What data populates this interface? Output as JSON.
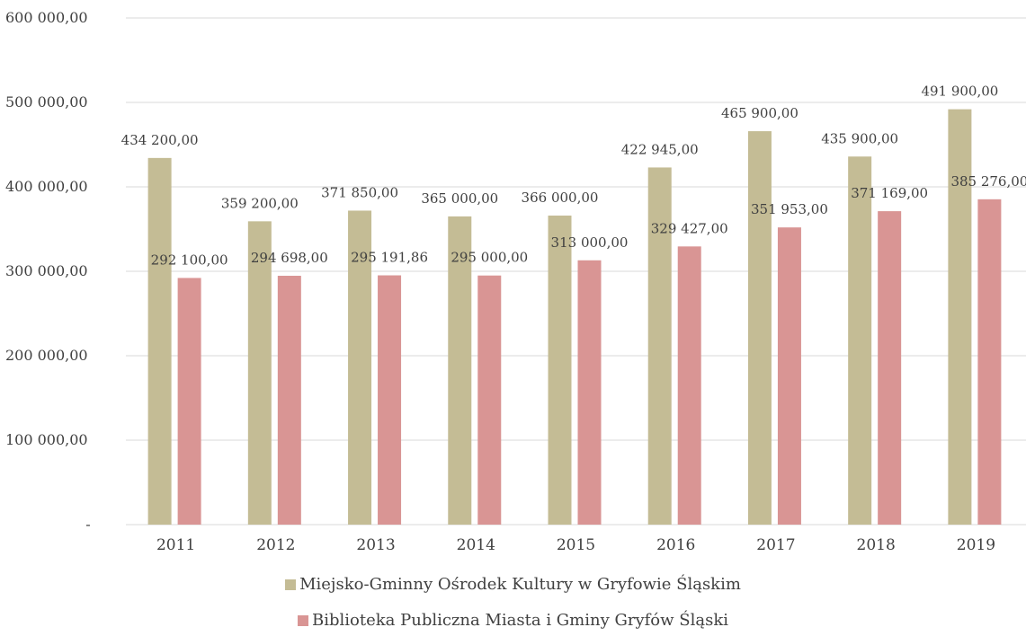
{
  "chart_data": {
    "type": "bar",
    "title": "",
    "xlabel": "",
    "ylabel": "",
    "categories": [
      "2011",
      "2012",
      "2013",
      "2014",
      "2015",
      "2016",
      "2017",
      "2018",
      "2019"
    ],
    "ylim": [
      0,
      600000
    ],
    "yticks": [
      0,
      100000,
      200000,
      300000,
      400000,
      500000,
      600000
    ],
    "ytick_labels": [
      "-",
      "100 000,00",
      "200 000,00",
      "300 000,00",
      "400 000,00",
      "500 000,00",
      "600 000,00"
    ],
    "grid": true,
    "legend_position": "bottom",
    "series": [
      {
        "name": "Miejsko-Gminny Ośrodek Kultury w Gryfowie Śląskim",
        "color": "#c4bc95",
        "values": [
          434200,
          359200,
          371850,
          365000,
          366000,
          422945,
          465900,
          435900,
          491900
        ],
        "labels": [
          "434 200,00",
          "359 200,00",
          "371 850,00",
          "365 000,00",
          "366 000,00",
          "422 945,00",
          "465 900,00",
          "435 900,00",
          "491 900,00"
        ]
      },
      {
        "name": "Biblioteka Publiczna Miasta i Gminy Gryfów Śląski",
        "color": "#d99594",
        "values": [
          292100,
          294698,
          295191.86,
          295000,
          313000,
          329427,
          351953,
          371169,
          385276
        ],
        "labels": [
          "292 100,00",
          "294 698,00",
          "295 191,86",
          "295 000,00",
          "313 000,00",
          "329 427,00",
          "351 953,00",
          "371 169,00",
          "385 276,00"
        ]
      }
    ],
    "gridline_color": "#d9d9d9"
  }
}
